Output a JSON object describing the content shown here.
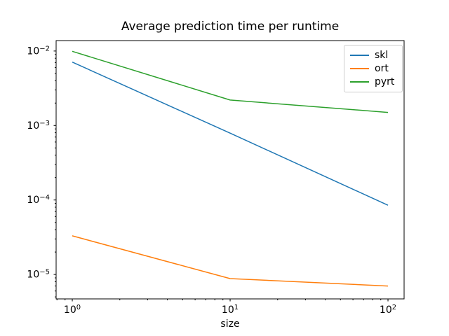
{
  "chart_data": {
    "type": "line",
    "title": "Average prediction time per runtime",
    "xlabel": "size",
    "ylabel": "",
    "x_scale": "log",
    "y_scale": "log",
    "grid": false,
    "x": [
      1,
      10,
      100
    ],
    "series": [
      {
        "name": "skl",
        "color": "#1f77b4",
        "values": [
          0.0071,
          0.00079,
          8.5e-05
        ]
      },
      {
        "name": "ort",
        "color": "#ff7f0e",
        "values": [
          3.3e-05,
          8.8e-06,
          7e-06
        ]
      },
      {
        "name": "pyrt",
        "color": "#2ca02c",
        "values": [
          0.0099,
          0.0022,
          0.0015
        ]
      }
    ],
    "xlim": [
      0.79,
      126.5
    ],
    "ylim": [
      4.7e-06,
      0.0138
    ],
    "x_tick_exponents": [
      0,
      1,
      2
    ],
    "y_tick_exponents": [
      -2,
      -3,
      -4,
      -5
    ],
    "legend": {
      "position": "upper right",
      "labels": [
        "skl",
        "ort",
        "pyrt"
      ]
    },
    "axis_color": "#000000",
    "background_color": "#ffffff"
  }
}
